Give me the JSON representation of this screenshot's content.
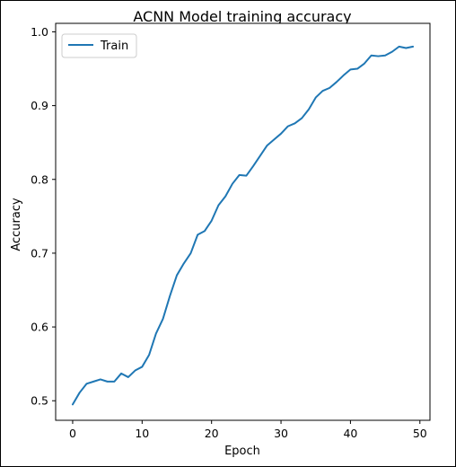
{
  "chart_data": {
    "type": "line",
    "title": "ACNN Model training accuracy",
    "xlabel": "Epoch",
    "ylabel": "Accuracy",
    "xlim": [
      -2.45,
      51.45
    ],
    "ylim": [
      0.4735,
      1.0115
    ],
    "xticks": [
      0,
      10,
      20,
      30,
      40,
      50
    ],
    "yticks": [
      0.5,
      0.6,
      0.7,
      0.8,
      0.9,
      1.0
    ],
    "xtick_labels": [
      "0",
      "10",
      "20",
      "30",
      "40",
      "50"
    ],
    "ytick_labels": [
      "0.5",
      "0.6",
      "0.7",
      "0.8",
      "0.9",
      "1.0"
    ],
    "grid": false,
    "legend_position": "top-left",
    "series": [
      {
        "name": "Train",
        "color": "#1f77b4",
        "x": [
          0,
          1,
          2,
          3,
          4,
          5,
          6,
          7,
          8,
          9,
          10,
          11,
          12,
          13,
          14,
          15,
          16,
          17,
          18,
          19,
          20,
          21,
          22,
          23,
          24,
          25,
          26,
          27,
          28,
          29,
          30,
          31,
          32,
          33,
          34,
          35,
          36,
          37,
          38,
          39,
          40,
          41,
          42,
          43,
          44,
          45,
          46,
          47,
          48,
          49
        ],
        "y": [
          0.495,
          0.511,
          0.523,
          0.526,
          0.529,
          0.526,
          0.526,
          0.537,
          0.532,
          0.541,
          0.546,
          0.562,
          0.591,
          0.611,
          0.642,
          0.67,
          0.686,
          0.7,
          0.725,
          0.73,
          0.744,
          0.765,
          0.777,
          0.794,
          0.806,
          0.805,
          0.818,
          0.832,
          0.846,
          0.854,
          0.862,
          0.872,
          0.876,
          0.883,
          0.895,
          0.911,
          0.92,
          0.924,
          0.932,
          0.941,
          0.949,
          0.95,
          0.957,
          0.968,
          0.967,
          0.968,
          0.973,
          0.98,
          0.978,
          0.98
        ]
      }
    ]
  }
}
